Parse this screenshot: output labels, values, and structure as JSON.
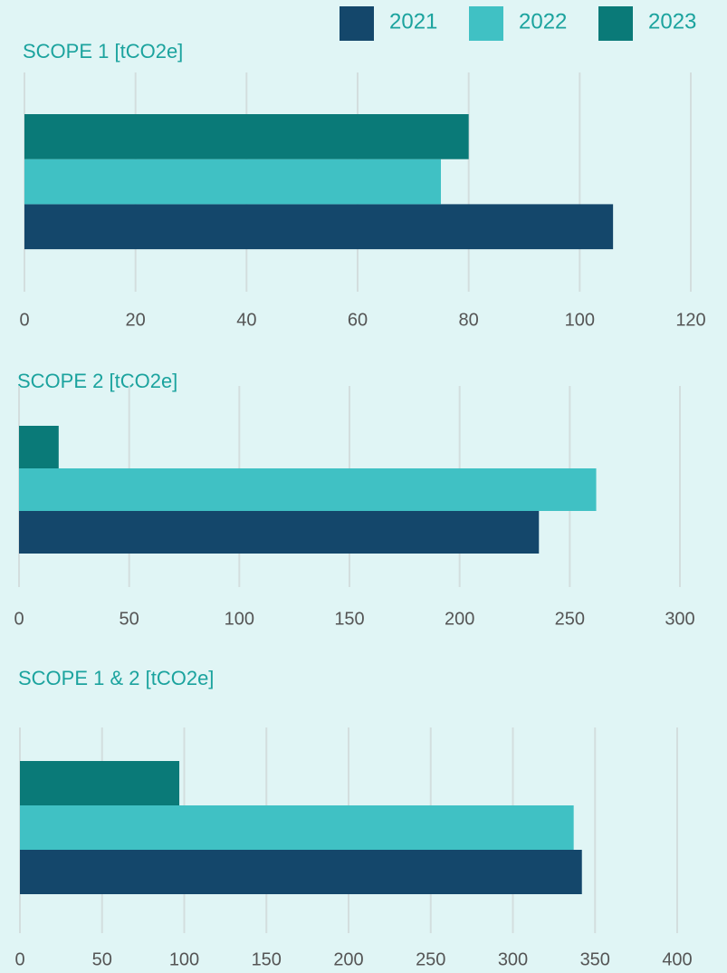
{
  "legend": [
    {
      "name": "2021",
      "color": "#14476b"
    },
    {
      "name": "2022",
      "color": "#40c1c4"
    },
    {
      "name": "2023",
      "color": "#0a7a78"
    }
  ],
  "chart_data": [
    {
      "type": "bar",
      "orientation": "horizontal",
      "title": "SCOPE 1 [tCO2e]",
      "values": [
        106,
        75,
        80
      ],
      "xlim": [
        0,
        120
      ],
      "xticks": [
        0,
        20,
        40,
        60,
        80,
        100,
        120
      ],
      "grid": true
    },
    {
      "type": "bar",
      "orientation": "horizontal",
      "title": "SCOPE 2 [tCO2e]",
      "values": [
        236,
        262,
        18
      ],
      "xlim": [
        0,
        300
      ],
      "xticks": [
        0,
        50,
        100,
        150,
        200,
        250,
        300
      ],
      "grid": true
    },
    {
      "type": "bar",
      "orientation": "horizontal",
      "title": "SCOPE 1 & 2 [tCO2e]",
      "values": [
        342,
        337,
        97
      ],
      "xlim": [
        0,
        400
      ],
      "xticks": [
        0,
        50,
        100,
        150,
        200,
        250,
        300,
        350,
        400
      ],
      "grid": true
    }
  ]
}
